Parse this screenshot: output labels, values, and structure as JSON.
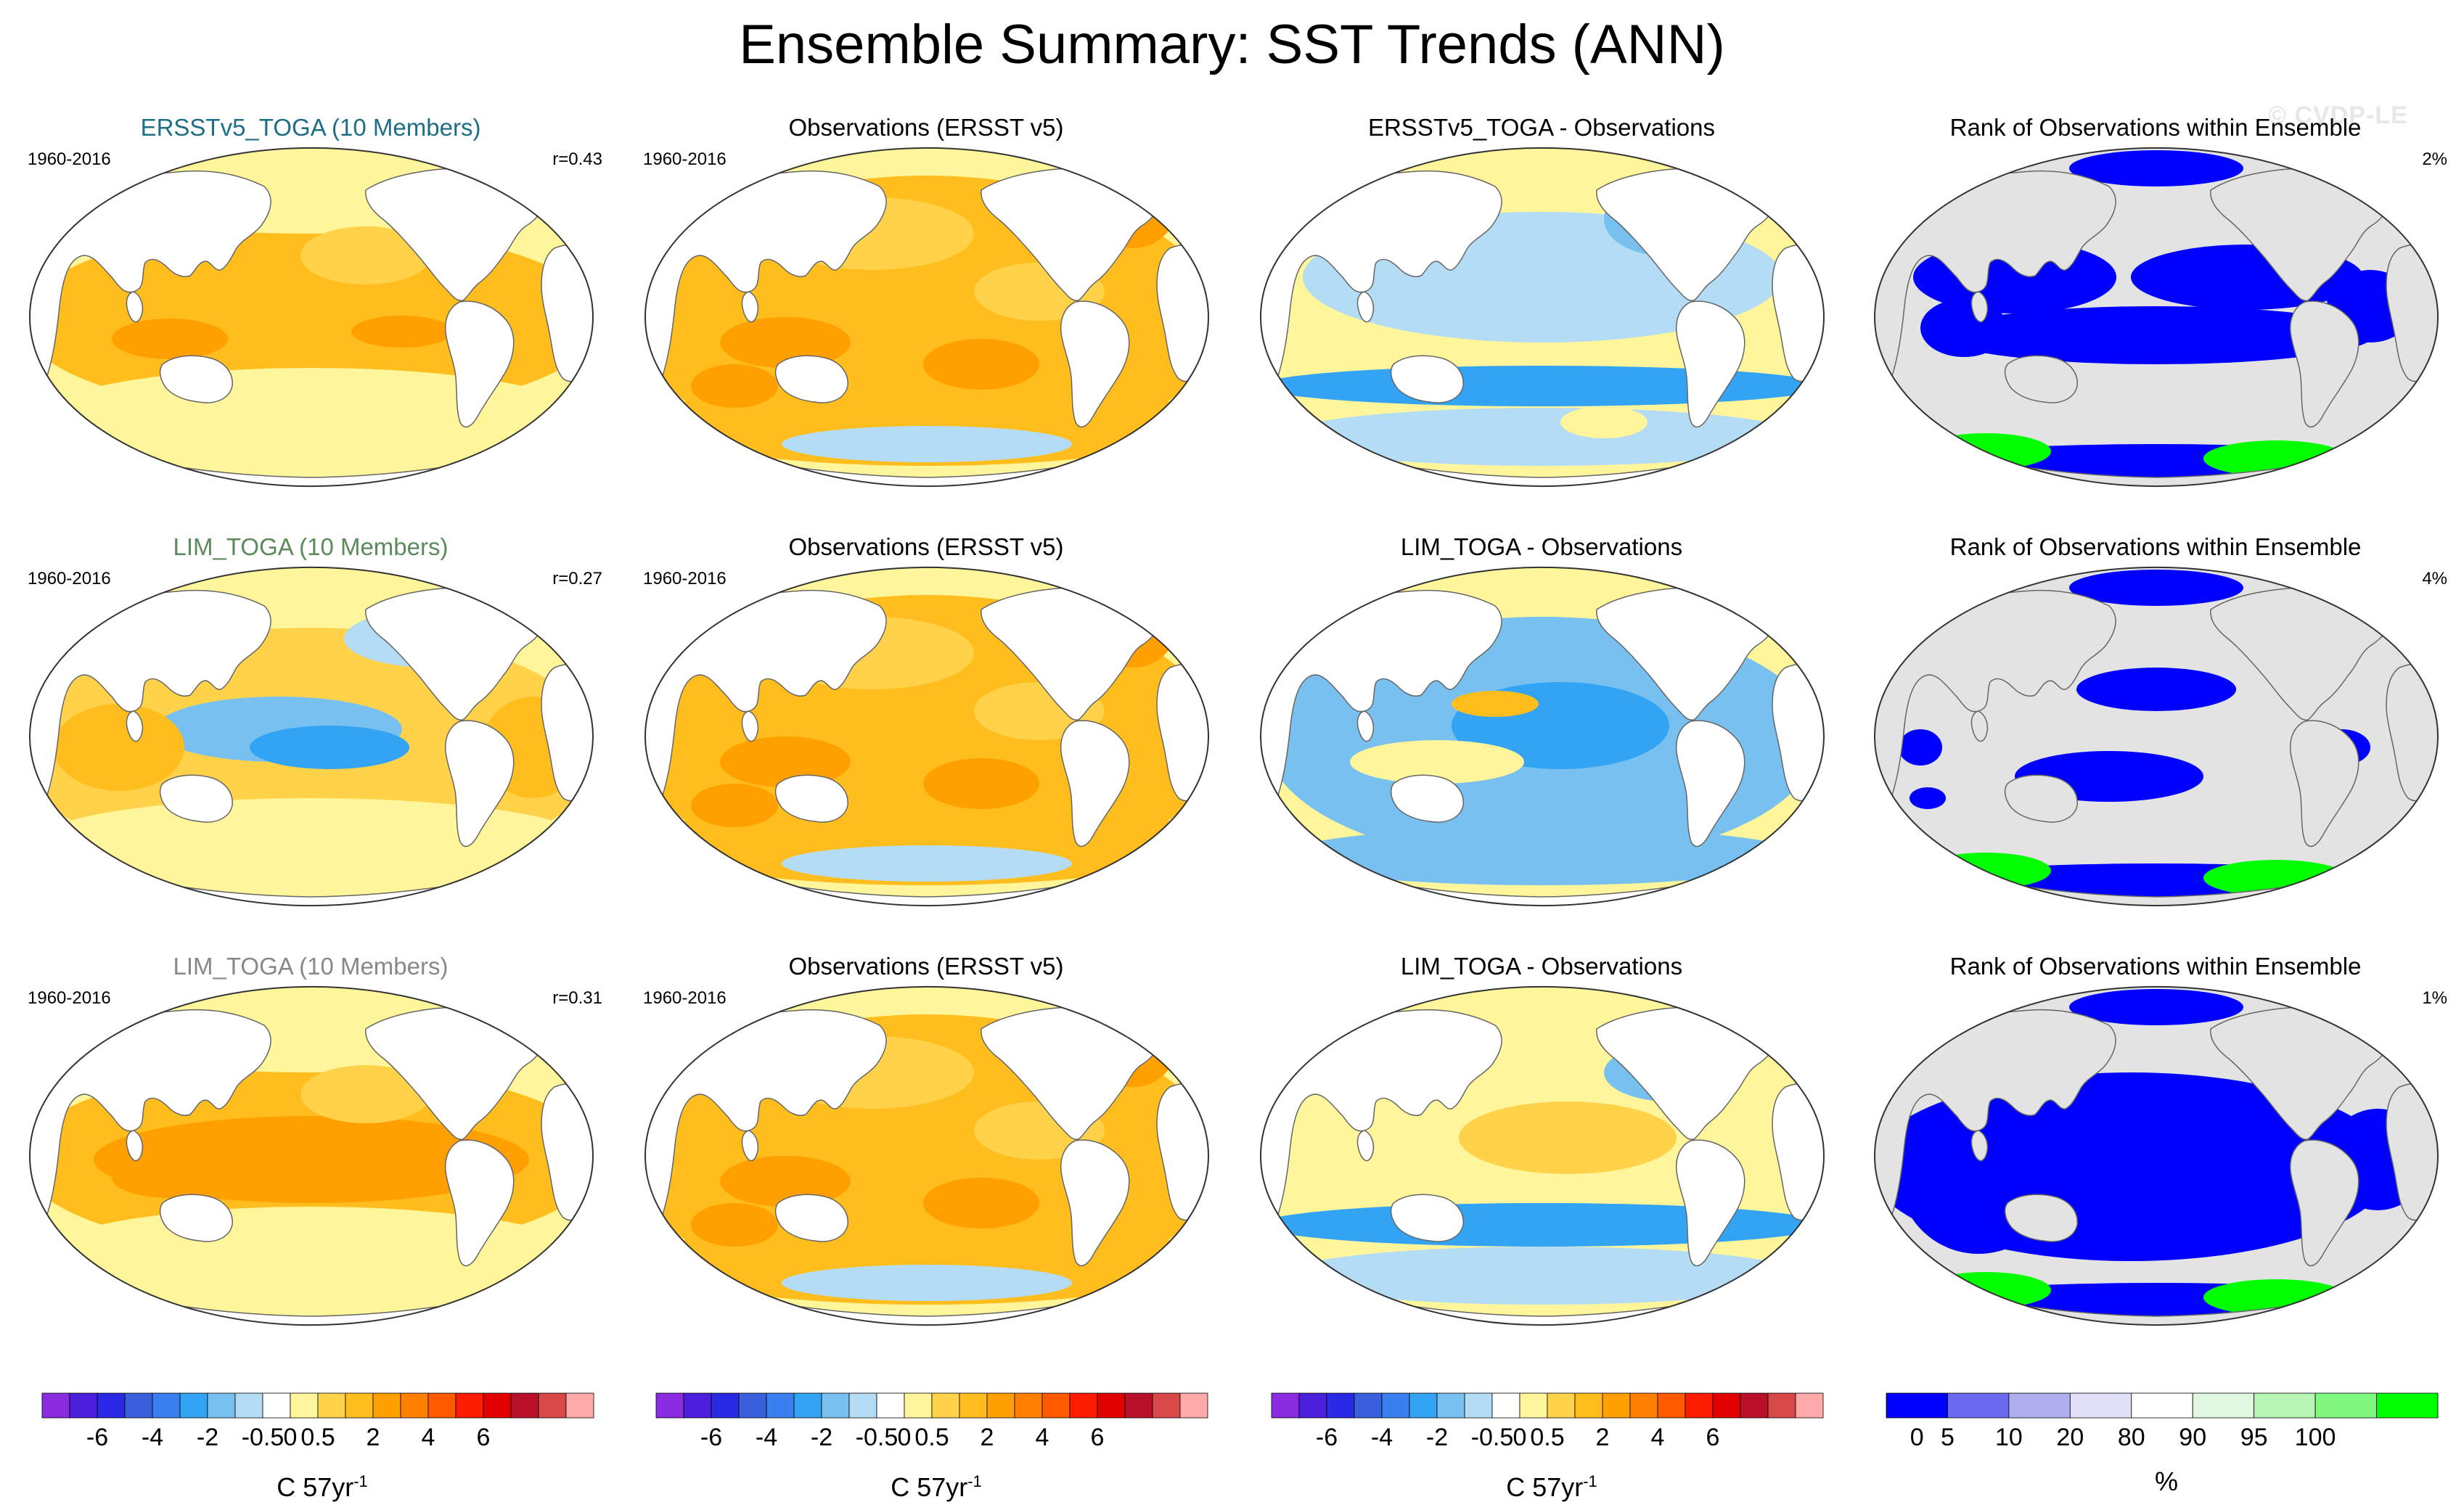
{
  "page": {
    "title": "Ensemble Summary: SST Trends (ANN)",
    "watermark": "© CVDP-LE"
  },
  "period": "1960-2016",
  "rows": [
    {
      "panels": [
        {
          "title": "ERSSTv5_TOGA (10 Members)",
          "title_color": "#1e6e86",
          "years": "1960-2016",
          "stat": "r=0.43",
          "kind": "model",
          "variant": 0
        },
        {
          "title": "Observations (ERSST v5)",
          "title_color": "#000000",
          "years": "1960-2016",
          "stat": "",
          "kind": "obs",
          "variant": 0
        },
        {
          "title": "ERSSTv5_TOGA - Observations",
          "title_color": "#000000",
          "years": "",
          "stat": "",
          "kind": "diff",
          "variant": 0
        },
        {
          "title": "Rank of Observations within Ensemble",
          "title_color": "#000000",
          "years": "",
          "stat": "2%",
          "kind": "rank",
          "variant": 0
        }
      ]
    },
    {
      "panels": [
        {
          "title": "LIM_TOGA (10 Members)",
          "title_color": "#5b8a5b",
          "years": "1960-2016",
          "stat": "r=0.27",
          "kind": "model",
          "variant": 1
        },
        {
          "title": "Observations (ERSST v5)",
          "title_color": "#000000",
          "years": "1960-2016",
          "stat": "",
          "kind": "obs",
          "variant": 1
        },
        {
          "title": "LIM_TOGA - Observations",
          "title_color": "#000000",
          "years": "",
          "stat": "",
          "kind": "diff",
          "variant": 1
        },
        {
          "title": "Rank of Observations within Ensemble",
          "title_color": "#000000",
          "years": "",
          "stat": "4%",
          "kind": "rank",
          "variant": 1
        }
      ]
    },
    {
      "panels": [
        {
          "title": "LIM_TOGA (10 Members)",
          "title_color": "#888888",
          "years": "1960-2016",
          "stat": "r=0.31",
          "kind": "model",
          "variant": 2
        },
        {
          "title": "Observations (ERSST v5)",
          "title_color": "#000000",
          "years": "1960-2016",
          "stat": "",
          "kind": "obs",
          "variant": 2
        },
        {
          "title": "LIM_TOGA - Observations",
          "title_color": "#000000",
          "years": "",
          "stat": "",
          "kind": "diff",
          "variant": 2
        },
        {
          "title": "Rank of Observations within Ensemble",
          "title_color": "#000000",
          "years": "",
          "stat": "1%",
          "kind": "rank",
          "variant": 2
        }
      ]
    }
  ],
  "colorbars": {
    "trend": {
      "colors": [
        "#8a2be2",
        "#4b1fdc",
        "#2a2ae6",
        "#3a5fdc",
        "#3a7ff0",
        "#33a4f4",
        "#78c0f0",
        "#b4dcf5",
        "#ffffff",
        "#fff59a",
        "#ffd24a",
        "#ffbe1e",
        "#ffa000",
        "#ff8000",
        "#ff5a00",
        "#ff1c00",
        "#e00000",
        "#b81028",
        "#d84848",
        "#ffaaaa"
      ],
      "colors_note": "trend palette",
      "tick_labels": [
        "-6",
        "-4",
        "-2",
        "-0.5",
        "0",
        "0.5",
        "2",
        "4",
        "6"
      ],
      "tick_edges": [
        2,
        4,
        6,
        8,
        9,
        10,
        12,
        14,
        16
      ],
      "units_main": "C 57yr",
      "units_sup": "-1"
    },
    "rank": {
      "colors": [
        "#0000ff",
        "#6a6af0",
        "#aeaeee",
        "#e0e0f8",
        "#ffffff",
        "#e0f8e0",
        "#b6f5b6",
        "#80f880",
        "#00ff00"
      ],
      "tick_labels": [
        "0",
        "5",
        "10",
        "20",
        "80",
        "90",
        "95",
        "100"
      ],
      "tick_edges": [
        0.5,
        1,
        2,
        3,
        4,
        5,
        6,
        7
      ],
      "units_main": "%"
    }
  },
  "legend_colors": {
    "land": "#ffffff",
    "rank_neutral": "#e3e3e3",
    "rank_low": "#0000ff",
    "rank_high": "#00ff00",
    "coast": "#666666"
  }
}
